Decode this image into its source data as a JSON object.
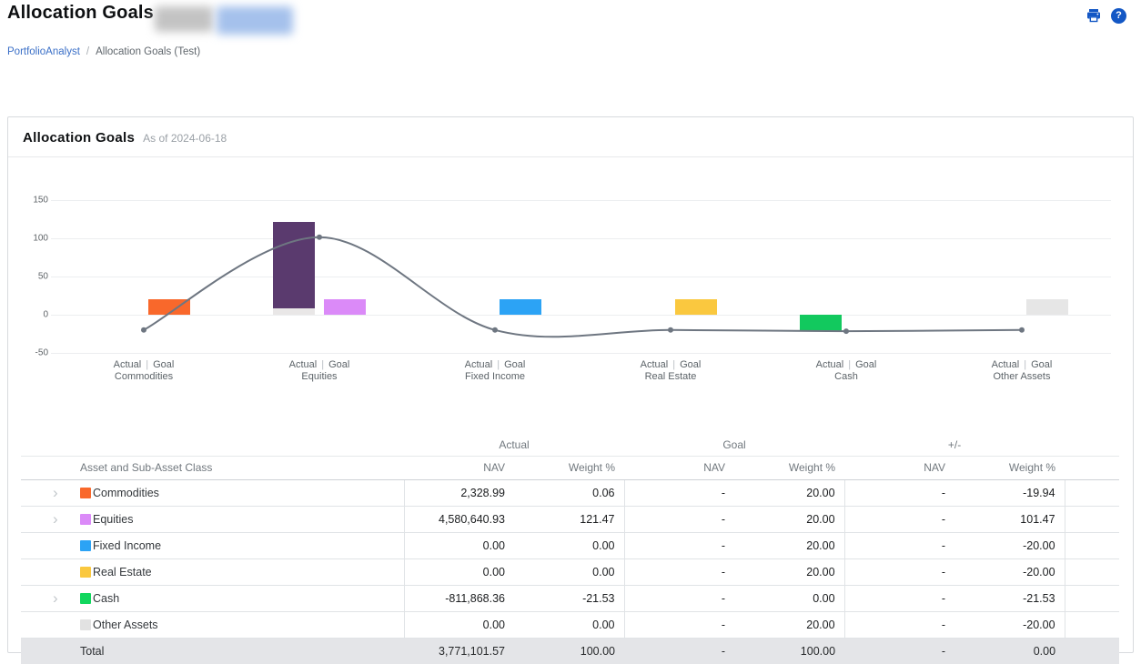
{
  "page": {
    "title": "Allocation Goals",
    "breadcrumb": {
      "parent": "PortfolioAnalyst",
      "separator": "/",
      "current": "Allocation Goals (Test)"
    },
    "icons": {
      "print": "printer-icon",
      "help": "?"
    },
    "accent_color": "#1357c5",
    "link_color": "#3a6fc7",
    "redaction_colors": {
      "gray": "#c3c3c3",
      "blue": "#a5c1ec"
    }
  },
  "card": {
    "title": "Allocation Goals",
    "as_of": "As of 2024-06-18"
  },
  "chart_data": {
    "type": "bar",
    "title": "Allocation Goals As of 2024-06-18",
    "categories": [
      "Commodities",
      "Equities",
      "Fixed Income",
      "Real Estate",
      "Cash",
      "Other Assets"
    ],
    "bar_group_labels": [
      "Actual",
      "Goal"
    ],
    "series": [
      {
        "name": "Actual",
        "values": [
          0.06,
          121.47,
          0.0,
          0.0,
          -21.53,
          0.0
        ]
      },
      {
        "name": "Goal",
        "values": [
          20.0,
          20.0,
          20.0,
          20.0,
          0.0,
          20.0
        ]
      }
    ],
    "actual_colors": [
      "#f9682b",
      "#5a3a6e",
      "#2ca3f5",
      "#fac83f",
      "#12c95e",
      "#e4e4e4"
    ],
    "goal_colors": [
      "#f9682b",
      "#db8af8",
      "#2ca3f5",
      "#fac83f",
      "#12c95e",
      "#e6e6e6"
    ],
    "actual_stacks": [
      null,
      [
        {
          "value": 8.0,
          "color": "#e9e7e7"
        },
        {
          "value": 113.47,
          "color": "#5a3a6e"
        }
      ],
      null,
      null,
      null,
      null
    ],
    "line": {
      "name": "+/-",
      "values": [
        -19.94,
        101.47,
        -20.0,
        -20.0,
        -21.53,
        -20.0
      ],
      "color": "#6e7681"
    },
    "ylim": [
      -50,
      150
    ],
    "yticks": [
      150,
      100,
      50,
      0,
      -50
    ],
    "grid": true,
    "legend": "none"
  },
  "table": {
    "group_headers": [
      {
        "label": "Actual"
      },
      {
        "label": "Goal"
      },
      {
        "label": "+/-"
      }
    ],
    "columns": [
      "Asset and Sub-Asset Class",
      "NAV",
      "Weight %",
      "NAV",
      "Weight %",
      "NAV",
      "Weight %"
    ],
    "rows": [
      {
        "name": "Commodities",
        "color": "#f9682b",
        "expandable": true,
        "actual_nav": "2,328.99",
        "actual_weight": "0.06",
        "goal_nav": "-",
        "goal_weight": "20.00",
        "diff_nav": "-",
        "diff_weight": "-19.94"
      },
      {
        "name": "Equities",
        "color": "#db8af8",
        "expandable": true,
        "actual_nav": "4,580,640.93",
        "actual_weight": "121.47",
        "goal_nav": "-",
        "goal_weight": "20.00",
        "diff_nav": "-",
        "diff_weight": "101.47"
      },
      {
        "name": "Fixed Income",
        "color": "#2ca3f5",
        "expandable": false,
        "actual_nav": "0.00",
        "actual_weight": "0.00",
        "goal_nav": "-",
        "goal_weight": "20.00",
        "diff_nav": "-",
        "diff_weight": "-20.00"
      },
      {
        "name": "Real Estate",
        "color": "#fac83f",
        "expandable": false,
        "actual_nav": "0.00",
        "actual_weight": "0.00",
        "goal_nav": "-",
        "goal_weight": "20.00",
        "diff_nav": "-",
        "diff_weight": "-20.00"
      },
      {
        "name": "Cash",
        "color": "#12d75e",
        "expandable": true,
        "actual_nav": "-811,868.36",
        "actual_weight": "-21.53",
        "goal_nav": "-",
        "goal_weight": "0.00",
        "diff_nav": "-",
        "diff_weight": "-21.53"
      },
      {
        "name": "Other Assets",
        "color": "#e2e2e2",
        "expandable": false,
        "actual_nav": "0.00",
        "actual_weight": "0.00",
        "goal_nav": "-",
        "goal_weight": "20.00",
        "diff_nav": "-",
        "diff_weight": "-20.00"
      }
    ],
    "total": {
      "name": "Total",
      "actual_nav": "3,771,101.57",
      "actual_weight": "100.00",
      "goal_nav": "-",
      "goal_weight": "100.00",
      "diff_nav": "-",
      "diff_weight": "0.00"
    }
  }
}
